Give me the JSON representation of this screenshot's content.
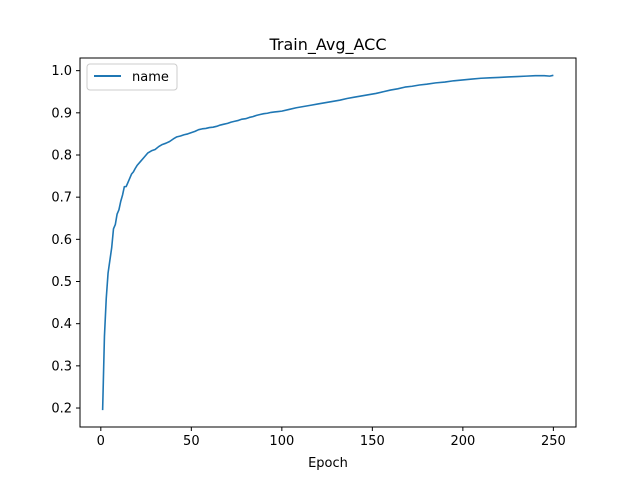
{
  "chart_data": {
    "type": "line",
    "title": "Train_Avg_ACC",
    "xlabel": "Epoch",
    "ylabel": "",
    "xlim": [
      -11.5,
      262.5
    ],
    "ylim": [
      0.155,
      1.03
    ],
    "xticks": [
      0,
      50,
      100,
      150,
      200,
      250
    ],
    "yticks": [
      0.2,
      0.3,
      0.4,
      0.5,
      0.6,
      0.7,
      0.8,
      0.9,
      1.0
    ],
    "grid": false,
    "legend_position": "upper left",
    "series": [
      {
        "name": "name",
        "color": "#1f77b4",
        "x": [
          1,
          2,
          3,
          4,
          5,
          6,
          7,
          8,
          9,
          10,
          11,
          12,
          13,
          14,
          15,
          16,
          17,
          18,
          19,
          20,
          22,
          24,
          26,
          28,
          30,
          32,
          34,
          36,
          38,
          40,
          42,
          44,
          46,
          48,
          50,
          52,
          54,
          56,
          58,
          60,
          62,
          64,
          66,
          68,
          70,
          72,
          74,
          76,
          78,
          80,
          82,
          84,
          86,
          88,
          90,
          92,
          94,
          96,
          98,
          100,
          104,
          108,
          112,
          116,
          120,
          124,
          128,
          132,
          136,
          140,
          144,
          148,
          152,
          156,
          160,
          164,
          168,
          172,
          176,
          180,
          185,
          190,
          195,
          200,
          205,
          210,
          215,
          220,
          225,
          230,
          235,
          240,
          245,
          248,
          250
        ],
        "y": [
          0.195,
          0.37,
          0.46,
          0.52,
          0.55,
          0.58,
          0.625,
          0.635,
          0.66,
          0.67,
          0.69,
          0.705,
          0.725,
          0.725,
          0.735,
          0.745,
          0.755,
          0.76,
          0.768,
          0.775,
          0.785,
          0.795,
          0.805,
          0.81,
          0.813,
          0.82,
          0.825,
          0.828,
          0.832,
          0.838,
          0.843,
          0.845,
          0.848,
          0.85,
          0.853,
          0.856,
          0.86,
          0.862,
          0.863,
          0.865,
          0.866,
          0.868,
          0.871,
          0.873,
          0.875,
          0.878,
          0.88,
          0.882,
          0.885,
          0.886,
          0.889,
          0.891,
          0.894,
          0.896,
          0.898,
          0.899,
          0.901,
          0.902,
          0.903,
          0.904,
          0.908,
          0.912,
          0.915,
          0.918,
          0.921,
          0.924,
          0.927,
          0.93,
          0.934,
          0.937,
          0.94,
          0.943,
          0.946,
          0.95,
          0.954,
          0.957,
          0.961,
          0.963,
          0.966,
          0.968,
          0.971,
          0.973,
          0.976,
          0.978,
          0.98,
          0.982,
          0.983,
          0.984,
          0.985,
          0.986,
          0.987,
          0.988,
          0.988,
          0.987,
          0.989
        ]
      }
    ]
  }
}
